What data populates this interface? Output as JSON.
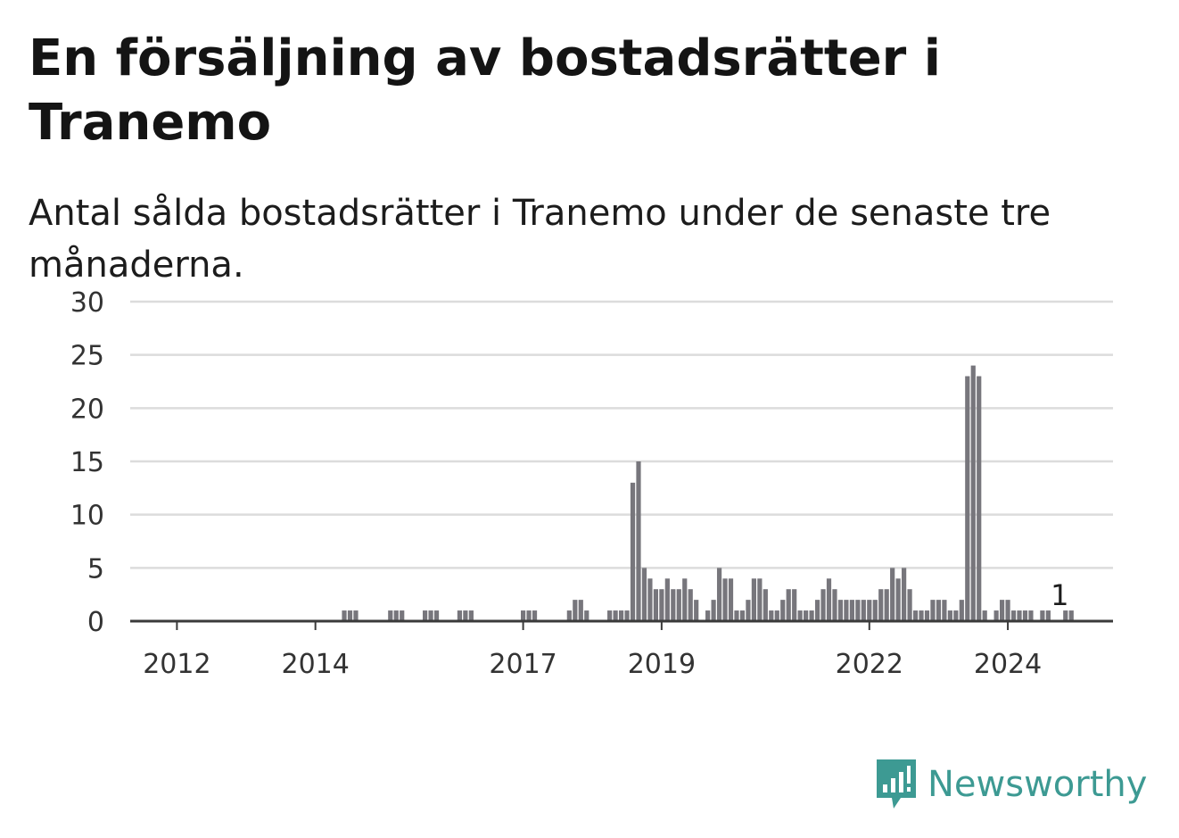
{
  "title": "En försäljning av bostadsrätter i Tranemo",
  "subtitle": "Antal sålda bostadsrätter i Tranemo under de senaste tre månaderna.",
  "brand": "Newsworthy",
  "colors": {
    "bar": "#77767c",
    "highlight": "#1f9e9a",
    "grid": "#dcdcdc",
    "axis": "#3a3a3a",
    "brand": "#3d9a93"
  },
  "chart_data": {
    "type": "bar",
    "ylim": [
      0,
      30
    ],
    "yticks": [
      0,
      5,
      10,
      15,
      20,
      25,
      30
    ],
    "xtick_labels": [
      {
        "label": "2012",
        "index": 7
      },
      {
        "label": "2014",
        "index": 31
      },
      {
        "label": "2017",
        "index": 67
      },
      {
        "label": "2019",
        "index": 91
      },
      {
        "label": "2022",
        "index": 127
      },
      {
        "label": "2024",
        "index": 151
      }
    ],
    "annotation": {
      "label": "1",
      "index": 160
    },
    "values": [
      0,
      0,
      0,
      0,
      0,
      0,
      0,
      0,
      0,
      0,
      0,
      0,
      0,
      0,
      0,
      0,
      0,
      0,
      0,
      0,
      0,
      0,
      0,
      0,
      0,
      0,
      0,
      0,
      0,
      0,
      0,
      0,
      0,
      0,
      0,
      0,
      1,
      1,
      1,
      0,
      0,
      0,
      0,
      0,
      1,
      1,
      1,
      0,
      0,
      0,
      1,
      1,
      1,
      0,
      0,
      0,
      1,
      1,
      1,
      0,
      0,
      0,
      0,
      0,
      0,
      0,
      0,
      1,
      1,
      1,
      0,
      0,
      0,
      0,
      0,
      1,
      2,
      2,
      1,
      0,
      0,
      0,
      1,
      1,
      1,
      1,
      13,
      15,
      5,
      4,
      3,
      3,
      4,
      3,
      3,
      4,
      3,
      2,
      0,
      1,
      2,
      5,
      4,
      4,
      1,
      1,
      2,
      4,
      4,
      3,
      1,
      1,
      2,
      3,
      3,
      1,
      1,
      1,
      2,
      3,
      4,
      3,
      2,
      2,
      2,
      2,
      2,
      2,
      2,
      3,
      3,
      5,
      4,
      5,
      3,
      1,
      1,
      1,
      2,
      2,
      2,
      1,
      1,
      2,
      23,
      24,
      23,
      1,
      0,
      1,
      2,
      2,
      1,
      1,
      1,
      1,
      0,
      1,
      1,
      0,
      0,
      1,
      1
    ]
  }
}
